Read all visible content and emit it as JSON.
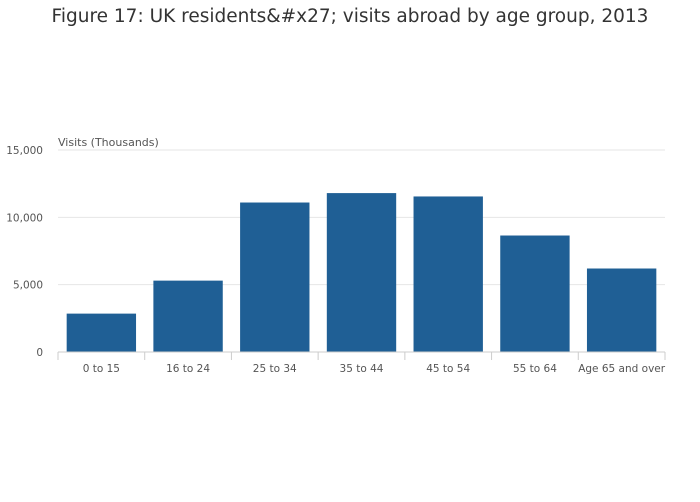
{
  "chart_data": {
    "type": "bar",
    "title": "Figure 17: UK residents&#x27; visits abroad by age group, 2013",
    "ylabel": "Visits (Thousands)",
    "xlabel": "",
    "categories": [
      "0 to 15",
      "16 to 24",
      "25 to 34",
      "35 to 44",
      "45 to 54",
      "55 to 64",
      "Age 65 and over"
    ],
    "values": [
      2850,
      5300,
      11100,
      11800,
      11550,
      8650,
      6200
    ],
    "ylim": [
      0,
      15000
    ],
    "yticks": [
      0,
      5000,
      10000,
      15000
    ],
    "ytick_labels": [
      "0",
      "5,000",
      "10,000",
      "15,000"
    ],
    "grid": true,
    "bar_color": "#1f5f95",
    "grid_color": "#e6e6e6",
    "axis_color": "#cccccc"
  }
}
